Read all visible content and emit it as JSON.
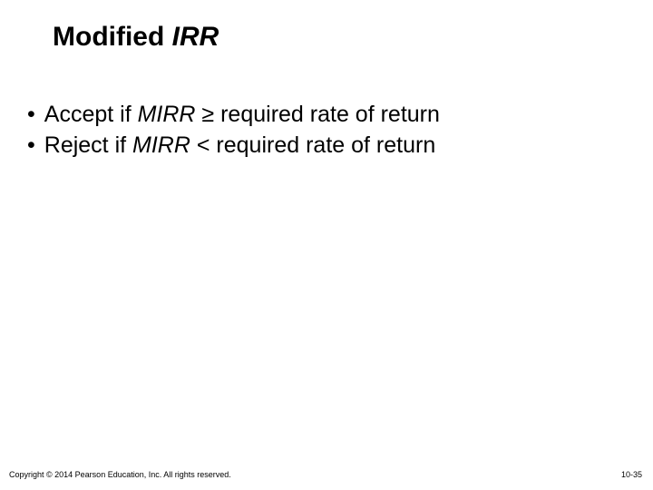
{
  "title_plain": "Modified ",
  "title_italic": "IRR",
  "bullets": [
    {
      "prefix": "Accept if ",
      "mirr": "MIRR",
      "op": " ≥ ",
      "suffix": "required rate of return"
    },
    {
      "prefix": "Reject if ",
      "mirr": "MIRR",
      "op": " < ",
      "suffix": "required rate of return"
    }
  ],
  "copyright": "Copyright © 2014 Pearson Education, Inc. All rights reserved.",
  "page_number": "10-35",
  "colors": {
    "bg": "#ffffff",
    "text": "#000000"
  }
}
